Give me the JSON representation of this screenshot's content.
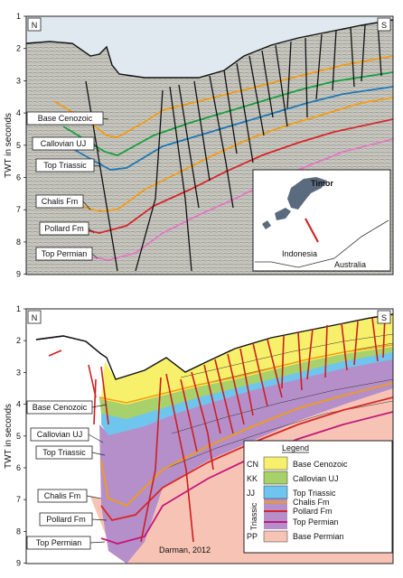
{
  "top_panel": {
    "compass_left": "N",
    "compass_right": "S",
    "y_axis_label": "TWT in seconds",
    "y_ticks": [
      "1",
      "2",
      "3",
      "4",
      "5",
      "6",
      "7",
      "8",
      "9"
    ],
    "horizon_labels": [
      {
        "text": "Base Cenozoic",
        "color": "#f39c12"
      },
      {
        "text": "Callovian UJ",
        "color": "#1a9e3f"
      },
      {
        "text": "Top Triassic",
        "color": "#1f77b4"
      },
      {
        "text": "Chalis Fm",
        "color": "#f39c12"
      },
      {
        "text": "Pollard Fm",
        "color": "#d62728"
      },
      {
        "text": "Top Permian",
        "color": "#e377c2"
      }
    ],
    "inset_map": {
      "island_label": "Timor",
      "country_labels": [
        "Indonesia",
        "Australia"
      ]
    }
  },
  "bottom_panel": {
    "compass_left": "N",
    "compass_right": "S",
    "y_axis_label": "TWT in seconds",
    "y_ticks": [
      "1",
      "2",
      "3",
      "4",
      "5",
      "6",
      "7",
      "8",
      "9"
    ],
    "horizon_labels": [
      "Base Cenozoic",
      "Callovian UJ",
      "Top Triassic",
      "Chalis Fm",
      "Pollard Fm",
      "Top Permian"
    ],
    "legend": {
      "title": "Legend",
      "group_label": "Triassic",
      "items": [
        {
          "code": "CN",
          "text": "Base Cenozoic",
          "color": "#f7f06a"
        },
        {
          "code": "KK",
          "text": "Callovian UJ",
          "color": "#a8d06b"
        },
        {
          "code": "JJ",
          "text": "Top Triassic",
          "color": "#6ec6ef"
        },
        {
          "code": "",
          "text": "Chalis Fm",
          "color": "#f39c12"
        },
        {
          "code": "",
          "text": "Pollard Fm",
          "color": "#d62728"
        },
        {
          "code": "",
          "text": "Top Permian",
          "color": "#c2187a"
        },
        {
          "code": "PP",
          "text": "Base Permian",
          "color": "#f7c3b5"
        }
      ],
      "triassic_color": "#b58fc9"
    },
    "credit": "Darman, 2012"
  }
}
